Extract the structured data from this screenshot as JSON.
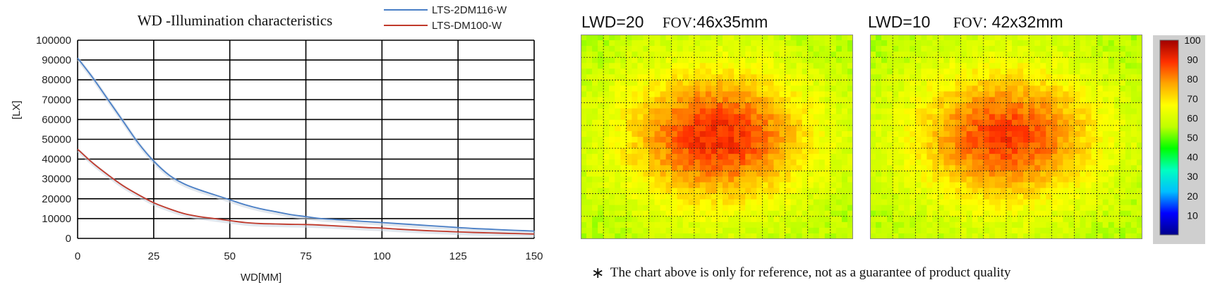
{
  "chart_data": [
    {
      "type": "line",
      "title": "WD -Illumination characteristics",
      "xlabel": "WD[MM]",
      "ylabel": "[LX]",
      "xlim": [
        0,
        150
      ],
      "ylim": [
        0,
        100000
      ],
      "x_ticks": [
        "0",
        "25",
        "50",
        "75",
        "100",
        "125",
        "150"
      ],
      "y_ticks": [
        "0",
        "10000",
        "20000",
        "30000",
        "40000",
        "50000",
        "60000",
        "70000",
        "80000",
        "90000",
        "100000"
      ],
      "grid": true,
      "legend_position": "top-right",
      "x": [
        0,
        5,
        10,
        15,
        20,
        25,
        30,
        35,
        40,
        45,
        50,
        55,
        60,
        65,
        70,
        75,
        80,
        85,
        90,
        95,
        100,
        105,
        110,
        115,
        120,
        125,
        130,
        135,
        140,
        145,
        150
      ],
      "series": [
        {
          "name": "LTS-2DM116-W",
          "color": "#4a7fc6",
          "values": [
            91000,
            81000,
            70000,
            59000,
            48000,
            39000,
            32000,
            27500,
            24500,
            22000,
            19500,
            17000,
            15000,
            13500,
            12000,
            11000,
            10000,
            9500,
            9000,
            8500,
            8000,
            7500,
            7000,
            6500,
            6000,
            5500,
            5000,
            4700,
            4300,
            4000,
            3700
          ]
        },
        {
          "name": "LTS-DM100-W",
          "color": "#c0392b",
          "values": [
            45000,
            38000,
            32000,
            26500,
            22000,
            18000,
            15000,
            12500,
            11000,
            10000,
            9000,
            8000,
            7500,
            7300,
            7100,
            7000,
            6700,
            6300,
            5900,
            5500,
            5200,
            4700,
            4300,
            3900,
            3600,
            3300,
            3000,
            2800,
            2600,
            2400,
            2200
          ]
        }
      ]
    },
    {
      "type": "heatmap",
      "title": "LWD=20",
      "fov_label": "FOV",
      "fov_value": ":46x35mm",
      "grid": true,
      "peak_level": 90,
      "edge_level": 55
    },
    {
      "type": "heatmap",
      "title": "LWD=10",
      "fov_label": "FOV",
      "fov_value": ": 42x32mm",
      "grid": true,
      "peak_level": 88,
      "edge_level": 55
    }
  ],
  "colorbar": {
    "ticks": [
      "10",
      "20",
      "30",
      "40",
      "50",
      "60",
      "70",
      "80",
      "90",
      "100"
    ],
    "range": [
      0,
      100
    ],
    "colors": [
      "#00008b",
      "#0000ff",
      "#00bfff",
      "#00ffc0",
      "#00ff00",
      "#c0ff00",
      "#ffff00",
      "#ffa500",
      "#ff3000",
      "#a00000"
    ]
  },
  "footnote": {
    "mark": "∗",
    "text": "The chart above is only for reference, not as a guarantee of product quality"
  }
}
